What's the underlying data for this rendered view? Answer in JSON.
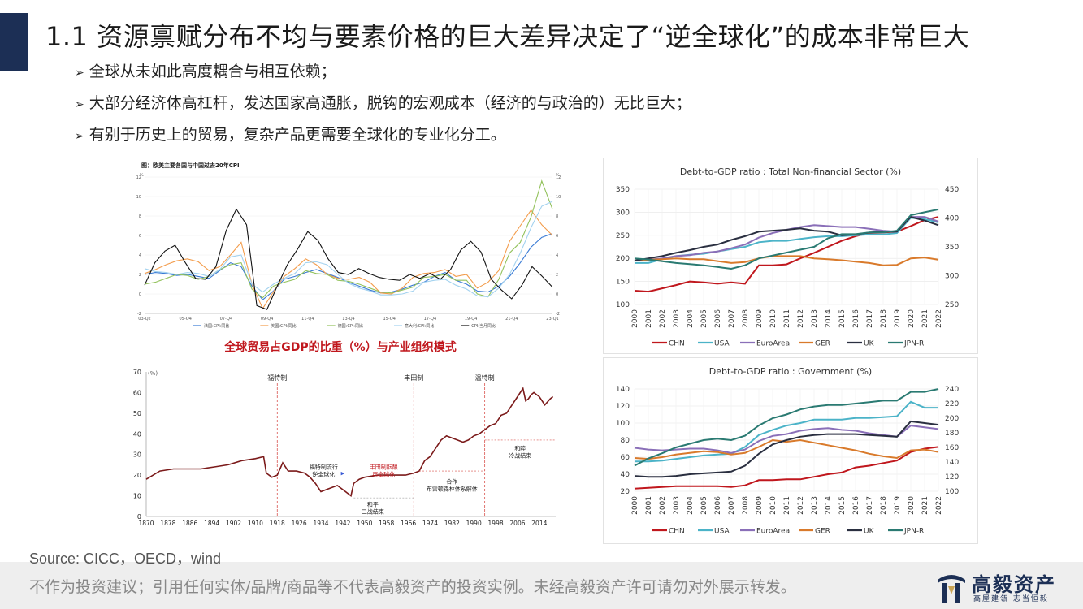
{
  "title": "1.1 资源禀赋分布不均与要素价格的巨大差异决定了“逆全球化”的成本非常巨大",
  "bullets": [
    "全球从未如此高度耦合与相互依赖；",
    "大部分经济体高杠杆，发达国家高通胀，脱钩的宏观成本（经济的与政治的）无比巨大；",
    "有别于历史上的贸易，复杂产品更需要全球化的专业化分工。"
  ],
  "source": "Source: CICC，OECD，wind",
  "disclaimer": "不作为投资建议；引用任何实体/品牌/商品等不代表高毅资产的投资实例。未经高毅资产许可请勿对外展示转发。",
  "logo": {
    "name": "高毅资产",
    "tagline": "高屋建瓴 志当恒毅"
  },
  "colors": {
    "accent": "#1c2f55",
    "chn": "#c0171d",
    "usa": "#4bb3c8",
    "euro": "#8a6fb8",
    "ger": "#d97a2b",
    "uk": "#2a2f40",
    "jpn": "#2a7a72",
    "trade": "#7b1a1a",
    "divider": "#d9534f"
  },
  "chart_data": [
    {
      "type": "line",
      "title": "图：欧美主要各国与中国过去20年CPI",
      "ylabel_left": "%",
      "ylabel_right": "%",
      "ylim": [
        -2,
        12
      ],
      "yticks": [
        -2,
        0,
        2,
        4,
        6,
        8,
        10,
        12
      ],
      "x_ticks": [
        "03-Q2",
        "05-Q4",
        "07-Q4",
        "09-Q4",
        "11-Q4",
        "13-Q4",
        "15-Q4",
        "17-Q4",
        "19-Q4",
        "21-Q4",
        "23-Q1"
      ],
      "series": [
        {
          "name": "法国:CPI:同比",
          "color": "#3a7bd5",
          "values": [
            2.0,
            2.2,
            2.1,
            1.9,
            2.0,
            1.8,
            1.6,
            2.4,
            3.2,
            2.8,
            0.8,
            -0.6,
            0.3,
            1.5,
            1.8,
            2.2,
            2.5,
            2.1,
            1.7,
            1.2,
            0.8,
            0.4,
            0.1,
            0.2,
            0.5,
            0.9,
            1.2,
            1.8,
            2.2,
            1.4,
            1.0,
            0.3,
            0.2,
            0.8,
            1.8,
            3.2,
            4.8,
            5.8,
            6.2
          ]
        },
        {
          "name": "美国:CPI:同比",
          "color": "#f39c4b",
          "values": [
            2.1,
            2.5,
            3.0,
            3.4,
            3.6,
            3.3,
            2.4,
            2.8,
            4.0,
            5.3,
            1.0,
            -1.5,
            0.2,
            1.8,
            2.6,
            3.6,
            3.0,
            2.0,
            1.6,
            1.5,
            1.7,
            1.2,
            0.1,
            0.0,
            0.6,
            1.7,
            2.1,
            2.2,
            2.5,
            1.8,
            2.0,
            0.6,
            1.2,
            2.4,
            5.4,
            7.0,
            8.6,
            7.1,
            6.0
          ]
        },
        {
          "name": "德国:CPI:同比",
          "color": "#93c25c",
          "values": [
            1.0,
            1.2,
            1.6,
            2.0,
            1.9,
            1.5,
            1.8,
            2.5,
            3.0,
            3.2,
            0.5,
            -0.4,
            0.8,
            1.2,
            1.5,
            2.4,
            2.1,
            2.0,
            1.4,
            1.3,
            1.0,
            0.6,
            0.2,
            0.1,
            0.4,
            0.7,
            1.7,
            1.8,
            2.0,
            1.4,
            1.4,
            0.0,
            -0.3,
            1.5,
            4.2,
            5.3,
            7.9,
            11.6,
            8.7
          ]
        },
        {
          "name": "意大利:CPI:同比",
          "color": "#a3d2ef",
          "values": [
            2.6,
            2.3,
            2.2,
            2.0,
            2.2,
            2.1,
            1.8,
            2.5,
            3.8,
            4.0,
            1.0,
            0.2,
            1.0,
            1.6,
            2.1,
            3.2,
            3.3,
            3.0,
            2.0,
            1.1,
            0.6,
            0.3,
            -0.1,
            -0.1,
            0.0,
            0.3,
            1.2,
            1.4,
            1.5,
            0.9,
            0.5,
            -0.2,
            -0.3,
            0.6,
            2.0,
            4.2,
            6.8,
            9.0,
            9.5
          ]
        },
        {
          "name": "CPI:当月同比",
          "color": "#111111",
          "values": [
            0.9,
            3.2,
            4.4,
            5.0,
            3.2,
            1.6,
            1.5,
            2.8,
            6.5,
            8.7,
            7.1,
            -1.2,
            -1.6,
            0.8,
            3.0,
            4.6,
            6.4,
            5.5,
            3.6,
            2.2,
            2.0,
            2.6,
            2.1,
            1.7,
            1.5,
            1.4,
            2.0,
            1.6,
            2.1,
            1.5,
            2.5,
            4.5,
            5.4,
            4.3,
            1.5,
            0.4,
            -0.5,
            0.9,
            2.8,
            1.8,
            0.7
          ]
        }
      ]
    },
    {
      "type": "line",
      "title": "全球贸易占GDP的比重（%）与产业组织模式",
      "ylabel": "(%)",
      "ylim": [
        0,
        70
      ],
      "yticks": [
        0,
        10,
        20,
        30,
        40,
        50,
        60,
        70
      ],
      "x_ticks": [
        "1870",
        "1878",
        "1886",
        "1894",
        "1902",
        "1910",
        "1918",
        "1926",
        "1934",
        "1942",
        "1950",
        "1958",
        "1966",
        "1974",
        "1982",
        "1990",
        "1998",
        "2006",
        "2014"
      ],
      "x": [
        1870,
        1875,
        1880,
        1885,
        1890,
        1895,
        1900,
        1905,
        1910,
        1913,
        1914,
        1916,
        1918,
        1920,
        1922,
        1925,
        1928,
        1930,
        1932,
        1934,
        1936,
        1938,
        1940,
        1942,
        1944,
        1945,
        1946,
        1948,
        1950,
        1955,
        1960,
        1965,
        1968,
        1970,
        1972,
        1974,
        1976,
        1978,
        1980,
        1982,
        1984,
        1986,
        1988,
        1990,
        1992,
        1994,
        1996,
        1998,
        2000,
        2002,
        2004,
        2006,
        2008,
        2009,
        2010,
        2011,
        2012,
        2014,
        2016,
        2018,
        2019
      ],
      "values": [
        18,
        22,
        23,
        23,
        23,
        24,
        25,
        27,
        28,
        29,
        21,
        19,
        20,
        26,
        22,
        22,
        21,
        19,
        16,
        12,
        13,
        14,
        15,
        13,
        11,
        10,
        16,
        18,
        19,
        20,
        20,
        20,
        21,
        22,
        27,
        29,
        33,
        37,
        39,
        38,
        37,
        36,
        37,
        39,
        40,
        42,
        44,
        45,
        49,
        50,
        54,
        58,
        62,
        56,
        57,
        59,
        60,
        58,
        54,
        57,
        58
      ],
      "annotations": {
        "dividers": [
          {
            "x": 1918,
            "label": "福特制"
          },
          {
            "x": 1968,
            "label": "丰田制"
          },
          {
            "x": 1994,
            "label": "温特制"
          }
        ],
        "notes": [
          {
            "lines": [
              "福特制流行",
              "逆全球化"
            ],
            "color": "#222222"
          },
          {
            "lines": [
              "丰田制酝酿",
              "再全球化"
            ],
            "color": "#c0171d"
          },
          {
            "lines": [
              "合作",
              "布雷顿森林体系解体"
            ],
            "color": "#222222"
          },
          {
            "lines": [
              "和平",
              "二战结束"
            ],
            "color": "#222222"
          },
          {
            "lines": [
              "和睦",
              "冷战结束"
            ],
            "color": "#222222"
          }
        ]
      }
    },
    {
      "type": "line",
      "title": "Debt-to-GDP ratio : Total Non-financial Sector (%)",
      "categories": [
        "2000",
        "2001",
        "2002",
        "2003",
        "2004",
        "2005",
        "2006",
        "2007",
        "2008",
        "2009",
        "2010",
        "2011",
        "2012",
        "2013",
        "2014",
        "2015",
        "2016",
        "2017",
        "2018",
        "2019",
        "2020",
        "2021",
        "2022"
      ],
      "ylim_left": [
        100,
        350
      ],
      "yticks_left": [
        100,
        150,
        200,
        250,
        300,
        350
      ],
      "ylim_right": [
        250,
        450
      ],
      "yticks_right": [
        250,
        300,
        350,
        400,
        450
      ],
      "series": [
        {
          "name": "CHN",
          "axis": "left",
          "values": [
            130,
            128,
            135,
            142,
            150,
            148,
            145,
            148,
            145,
            185,
            185,
            187,
            200,
            212,
            225,
            238,
            248,
            255,
            256,
            258,
            270,
            283,
            290
          ]
        },
        {
          "name": "USA",
          "axis": "left",
          "values": [
            190,
            190,
            198,
            205,
            208,
            210,
            215,
            220,
            225,
            235,
            238,
            238,
            242,
            246,
            248,
            248,
            250,
            252,
            252,
            255,
            288,
            285,
            278
          ]
        },
        {
          "name": "EuroArea",
          "axis": "left",
          "values": [
            195,
            197,
            200,
            205,
            207,
            212,
            215,
            222,
            230,
            245,
            255,
            262,
            268,
            272,
            270,
            268,
            268,
            264,
            260,
            258,
            290,
            290,
            280
          ]
        },
        {
          "name": "GER",
          "axis": "left",
          "values": [
            195,
            197,
            198,
            200,
            198,
            198,
            194,
            190,
            192,
            200,
            205,
            205,
            205,
            200,
            198,
            196,
            193,
            190,
            185,
            186,
            200,
            202,
            197
          ]
        },
        {
          "name": "UK",
          "axis": "left",
          "values": [
            195,
            200,
            205,
            212,
            218,
            225,
            230,
            240,
            248,
            258,
            260,
            262,
            265,
            260,
            258,
            250,
            252,
            256,
            258,
            258,
            290,
            282,
            272
          ]
        },
        {
          "name": "JPN-R",
          "axis": "right",
          "values": [
            330,
            328,
            325,
            322,
            320,
            318,
            315,
            312,
            318,
            330,
            335,
            340,
            345,
            350,
            365,
            372,
            372,
            375,
            375,
            378,
            405,
            410,
            415
          ]
        }
      ]
    },
    {
      "type": "line",
      "title": "Debt-to-GDP ratio : Government (%)",
      "categories": [
        "2000",
        "2001",
        "2002",
        "2003",
        "2004",
        "2005",
        "2006",
        "2007",
        "2008",
        "2009",
        "2010",
        "2011",
        "2012",
        "2013",
        "2014",
        "2015",
        "2016",
        "2017",
        "2018",
        "2019",
        "2020",
        "2021",
        "2022"
      ],
      "ylim_left": [
        20,
        140
      ],
      "yticks_left": [
        20,
        40,
        60,
        80,
        100,
        120,
        140
      ],
      "ylim_right": [
        100,
        240
      ],
      "yticks_right": [
        100,
        120,
        140,
        160,
        180,
        200,
        220,
        240
      ],
      "series": [
        {
          "name": "CHN",
          "axis": "left",
          "values": [
            23,
            24,
            25,
            26,
            26,
            26,
            26,
            25,
            27,
            33,
            33,
            34,
            34,
            37,
            40,
            42,
            48,
            50,
            53,
            56,
            66,
            70,
            72
          ]
        },
        {
          "name": "USA",
          "axis": "left",
          "values": [
            55,
            55,
            56,
            58,
            60,
            62,
            63,
            64,
            72,
            86,
            92,
            97,
            100,
            104,
            104,
            104,
            106,
            106,
            107,
            108,
            125,
            118,
            118
          ]
        },
        {
          "name": "EuroArea",
          "axis": "left",
          "values": [
            71,
            69,
            68,
            69,
            70,
            70,
            68,
            65,
            69,
            79,
            85,
            87,
            91,
            93,
            94,
            92,
            91,
            88,
            86,
            84,
            97,
            95,
            93
          ]
        },
        {
          "name": "GER",
          "axis": "left",
          "values": [
            59,
            58,
            60,
            63,
            65,
            67,
            66,
            63,
            65,
            72,
            80,
            78,
            80,
            77,
            74,
            71,
            68,
            64,
            61,
            59,
            68,
            69,
            66
          ]
        },
        {
          "name": "UK",
          "axis": "left",
          "values": [
            38,
            37,
            37,
            38,
            40,
            41,
            42,
            43,
            50,
            64,
            75,
            80,
            84,
            86,
            87,
            87,
            87,
            86,
            85,
            84,
            102,
            100,
            98
          ]
        },
        {
          "name": "JPN-R",
          "axis": "right",
          "values": [
            135,
            145,
            152,
            160,
            165,
            170,
            172,
            170,
            176,
            190,
            200,
            205,
            212,
            216,
            218,
            218,
            220,
            222,
            224,
            224,
            236,
            236,
            240
          ]
        }
      ]
    }
  ]
}
